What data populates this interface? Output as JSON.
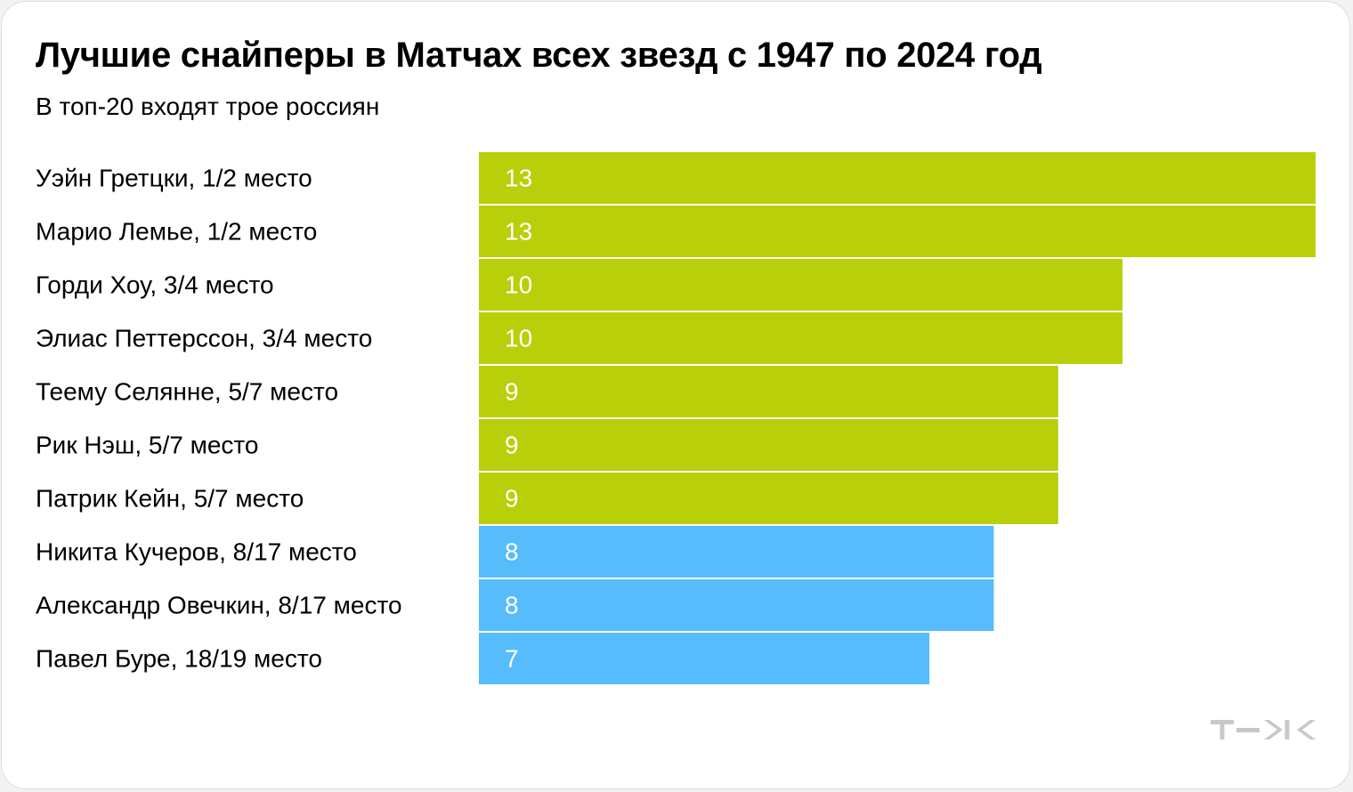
{
  "header": {
    "title": "Лучшие снайперы в Матчах всех звезд с 1947 по 2024 год",
    "subtitle": "В топ-20 входят трое россиян"
  },
  "colors": {
    "default_bar": "#b8cf0a",
    "russian_bar": "#56bcfc",
    "background": "#ffffff",
    "logo": "#c8c8c8"
  },
  "brand": {
    "logo_icon": "tzh-logo-icon"
  },
  "chart_data": {
    "type": "bar",
    "orientation": "horizontal",
    "title": "Лучшие снайперы в Матчах всех звезд с 1947 по 2024 год",
    "subtitle": "В топ-20 входят трое россиян",
    "categories": [
      "Уэйн Гретцки, 1/2 место",
      "Марио Лемье, 1/2 место",
      "Горди Хоу, 3/4 место",
      "Элиас Петтерссон, 3/4 место",
      "Теему Селянне, 5/7 место",
      "Рик Нэш, 5/7 место",
      "Патрик Кейн, 5/7 место",
      "Никита Кучеров, 8/17 место",
      "Александр Овечкин, 8/17 место",
      "Павел Буре, 18/19 место"
    ],
    "values": [
      13,
      13,
      10,
      10,
      9,
      9,
      9,
      8,
      8,
      7
    ],
    "highlight": [
      false,
      false,
      false,
      false,
      false,
      false,
      false,
      true,
      true,
      true
    ],
    "xlim": [
      0,
      13
    ],
    "grid": false,
    "legend": "none",
    "data_labels": "inside-left"
  }
}
